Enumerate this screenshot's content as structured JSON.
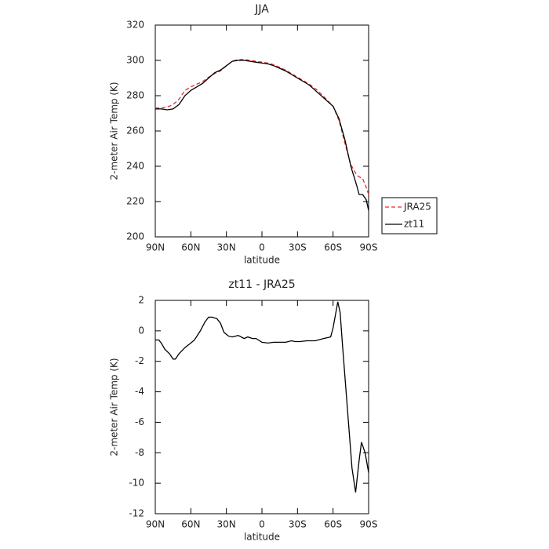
{
  "chart_data": [
    {
      "type": "line",
      "title": "JJA",
      "x_label": "latitude",
      "y_label": "2-meter Air Temp (K)",
      "x": [
        90,
        85,
        80,
        75,
        70,
        65,
        60,
        55,
        50,
        45,
        40,
        35,
        30,
        25,
        20,
        15,
        10,
        5,
        0,
        -5,
        -10,
        -15,
        -20,
        -25,
        -30,
        -35,
        -40,
        -45,
        -50,
        -55,
        -60,
        -65,
        -70,
        -75,
        -80,
        -82,
        -85,
        -88,
        -90
      ],
      "series": [
        {
          "name": "JRA25",
          "color": "#e8292a",
          "dash": true,
          "values": [
            273,
            273,
            273.5,
            275,
            278,
            283,
            285,
            286.5,
            288,
            290.5,
            292.5,
            294,
            297,
            299.5,
            300.5,
            300.5,
            300,
            299.5,
            299,
            298.5,
            297.5,
            296,
            294.5,
            292.5,
            290.5,
            288.5,
            286.5,
            284,
            281,
            277.5,
            274,
            266,
            253,
            241,
            235,
            234,
            233,
            228,
            224
          ]
        },
        {
          "name": "zt11",
          "color": "#000000",
          "dash": false,
          "values": [
            272.5,
            272.5,
            272,
            272.5,
            275,
            280,
            283,
            285,
            287,
            290,
            293,
            294.5,
            297,
            299.5,
            300,
            300,
            299.5,
            299,
            298.5,
            298,
            297,
            295.5,
            294,
            292,
            290,
            288,
            286,
            283,
            280,
            277,
            274,
            267,
            255,
            240,
            229,
            224,
            224,
            221,
            215
          ]
        }
      ],
      "xlim": [
        90,
        -90
      ],
      "xticks": [
        {
          "value": 90,
          "label": "90N"
        },
        {
          "value": 60,
          "label": "60N"
        },
        {
          "value": 30,
          "label": "30N"
        },
        0,
        {
          "value": -30,
          "label": "30S"
        },
        {
          "value": -60,
          "label": "60S"
        },
        {
          "value": -90,
          "label": "90S"
        }
      ],
      "ylim": [
        200,
        320
      ],
      "yticks": [
        200,
        220,
        240,
        260,
        280,
        300,
        320
      ],
      "legend": "right"
    },
    {
      "type": "line",
      "title": "zt11 - JRA25",
      "x_label": "latitude",
      "y_label": "2-meter Air Temp (K)",
      "x": [
        90,
        87,
        85,
        82,
        78,
        75,
        73,
        70,
        65,
        60,
        57,
        52,
        48,
        45,
        42,
        38,
        35,
        32,
        28,
        25,
        20,
        15,
        12,
        8,
        5,
        0,
        -5,
        -10,
        -15,
        -20,
        -25,
        -28,
        -32,
        -38,
        -45,
        -52,
        -58,
        -60,
        -64,
        -66,
        -68,
        -72,
        -76,
        -79,
        -82,
        -84,
        -87,
        -90
      ],
      "values": [
        -0.6,
        -0.6,
        -0.8,
        -1.2,
        -1.5,
        -1.85,
        -1.85,
        -1.5,
        -1.1,
        -0.8,
        -0.6,
        0,
        0.6,
        0.9,
        0.9,
        0.8,
        0.5,
        -0.1,
        -0.35,
        -0.4,
        -0.3,
        -0.5,
        -0.4,
        -0.5,
        -0.5,
        -0.75,
        -0.8,
        -0.75,
        -0.75,
        -0.75,
        -0.65,
        -0.7,
        -0.7,
        -0.65,
        -0.65,
        -0.5,
        -0.4,
        0.2,
        1.9,
        1.2,
        -1,
        -5,
        -9,
        -10.6,
        -8.5,
        -7.3,
        -8,
        -9.3
      ],
      "color": "#000000",
      "xlim": [
        90,
        -90
      ],
      "xticks": [
        {
          "value": 90,
          "label": "90N"
        },
        {
          "value": 60,
          "label": "60N"
        },
        {
          "value": 30,
          "label": "30N"
        },
        0,
        {
          "value": -30,
          "label": "30S"
        },
        {
          "value": -60,
          "label": "60S"
        },
        {
          "value": -90,
          "label": "90S"
        }
      ],
      "ylim": [
        -12,
        2
      ],
      "yticks": [
        -12,
        -10,
        -8,
        -6,
        -4,
        -2,
        0,
        2
      ]
    }
  ]
}
